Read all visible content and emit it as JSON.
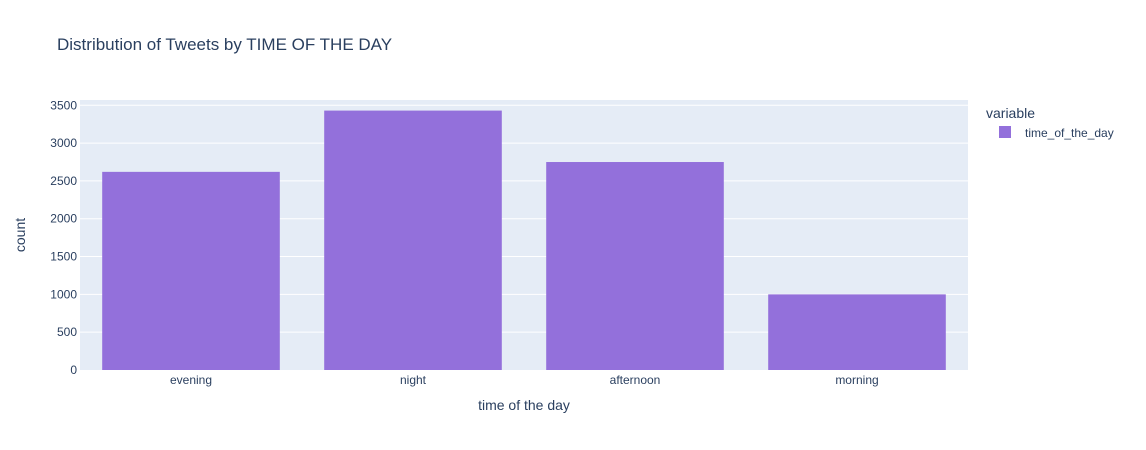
{
  "chart_data": {
    "type": "bar",
    "title": "Distribution of Tweets by TIME OF THE DAY",
    "xlabel": "time of the day",
    "ylabel": "count",
    "categories": [
      "evening",
      "night",
      "afternoon",
      "morning"
    ],
    "series": [
      {
        "name": "time_of_the_day",
        "values": [
          2620,
          3430,
          2750,
          1000
        ]
      }
    ],
    "ylim": [
      0,
      3570
    ],
    "yticks": [
      0,
      500,
      1000,
      1500,
      2000,
      2500,
      3000,
      3500
    ],
    "legend": {
      "title": "variable",
      "position": "top-right"
    },
    "grid": true,
    "colors": {
      "bar": "#9370db",
      "plot_bg": "#e5ecf6",
      "grid": "#ffffff",
      "text": "#2a3f5f"
    }
  }
}
